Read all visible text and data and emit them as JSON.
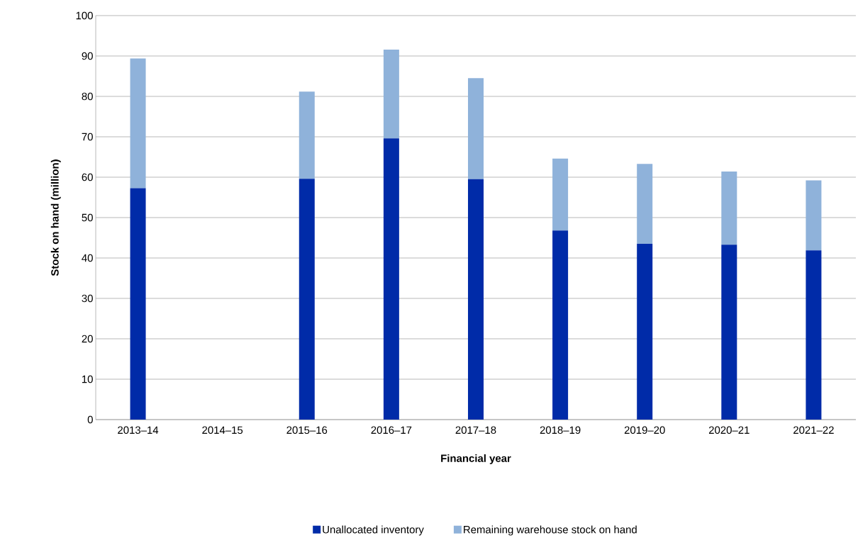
{
  "chart_data": {
    "type": "bar",
    "stacked": true,
    "xlabel": "Financial year",
    "ylabel": "Stock on hand (million)",
    "categories": [
      "2013–14",
      "2014–15",
      "2015–16",
      "2016–17",
      "2017–18",
      "2018–19",
      "2019–20",
      "2020–21",
      "2021–22"
    ],
    "series": [
      {
        "name": "Unallocated inventory",
        "color": "#002ba8",
        "values": [
          57.3,
          null,
          59.6,
          69.6,
          59.5,
          46.8,
          43.5,
          43.3,
          41.9
        ]
      },
      {
        "name": "Remaining warehouse stock on hand",
        "color": "#8fb2da",
        "values": [
          32.1,
          null,
          21.6,
          22.0,
          25.0,
          17.8,
          19.8,
          18.1,
          17.3
        ]
      }
    ],
    "ylim": [
      0,
      100
    ],
    "yticks": [
      0,
      10,
      20,
      30,
      40,
      50,
      60,
      70,
      80,
      90,
      100
    ],
    "grid": "y",
    "legend": "bottom"
  }
}
